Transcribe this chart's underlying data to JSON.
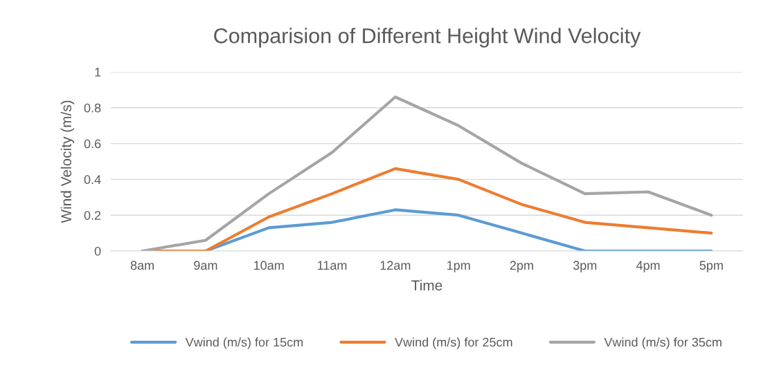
{
  "chart_data": {
    "type": "line",
    "title": "Comparision of Different Height Wind Velocity",
    "xlabel": "Time",
    "ylabel": "Wind Velocity (m/s)",
    "categories": [
      "8am",
      "9am",
      "10am",
      "11am",
      "12am",
      "1pm",
      "2pm",
      "3pm",
      "4pm",
      "5pm"
    ],
    "series": [
      {
        "name": "Vwind (m/s) for 15cm",
        "color": "#5b9bd5",
        "values": [
          0,
          0,
          0.13,
          0.16,
          0.23,
          0.2,
          0.1,
          0,
          0,
          0
        ]
      },
      {
        "name": "Vwind (m/s) for 25cm",
        "color": "#ed7d31",
        "values": [
          0,
          0,
          0.19,
          0.32,
          0.46,
          0.4,
          0.26,
          0.16,
          0.13,
          0.1
        ]
      },
      {
        "name": "Vwind (m/s) for 35cm",
        "color": "#a5a5a5",
        "values": [
          0,
          0.06,
          0.32,
          0.55,
          0.86,
          0.7,
          0.49,
          0.32,
          0.33,
          0.2
        ]
      }
    ],
    "ylim": [
      0,
      1
    ],
    "yticks": [
      0,
      0.2,
      0.4,
      0.6,
      0.8,
      1
    ],
    "grid": "y",
    "legend": "bottom",
    "marker": "none",
    "line_style": "solid"
  }
}
